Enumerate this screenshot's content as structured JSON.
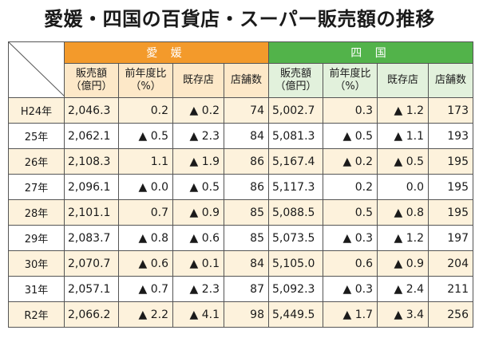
{
  "title": "愛媛・四国の百貨店・スーパー販売額の推移",
  "groups": {
    "ehime": "愛 媛",
    "shikoku": "四 国"
  },
  "headers": {
    "sales_line1": "販売額",
    "sales_line2": "（億円）",
    "yoy_line1": "前年度比",
    "yoy_line2": "（%）",
    "existing": "既存店",
    "stores": "店舗数"
  },
  "rows": [
    {
      "label": "H24年",
      "e_sales": "2,046.3",
      "e_yoy": "0.2",
      "e_exist": "▲ 0.2",
      "e_stores": "74",
      "s_sales": "5,002.7",
      "s_yoy": "0.3",
      "s_exist": "▲ 1.2",
      "s_stores": "173"
    },
    {
      "label": "25年",
      "e_sales": "2,062.1",
      "e_yoy": "▲ 0.5",
      "e_exist": "▲ 2.3",
      "e_stores": "84",
      "s_sales": "5,081.3",
      "s_yoy": "▲ 0.5",
      "s_exist": "▲ 1.1",
      "s_stores": "193"
    },
    {
      "label": "26年",
      "e_sales": "2,108.3",
      "e_yoy": "1.1",
      "e_exist": "▲ 1.9",
      "e_stores": "86",
      "s_sales": "5,167.4",
      "s_yoy": "▲ 0.2",
      "s_exist": "▲ 0.5",
      "s_stores": "195"
    },
    {
      "label": "27年",
      "e_sales": "2,096.1",
      "e_yoy": "▲ 0.0",
      "e_exist": "▲ 0.5",
      "e_stores": "86",
      "s_sales": "5,117.3",
      "s_yoy": "0.2",
      "s_exist": "0.0",
      "s_stores": "195"
    },
    {
      "label": "28年",
      "e_sales": "2,101.1",
      "e_yoy": "0.7",
      "e_exist": "▲ 0.9",
      "e_stores": "85",
      "s_sales": "5,088.5",
      "s_yoy": "0.5",
      "s_exist": "▲ 0.8",
      "s_stores": "195"
    },
    {
      "label": "29年",
      "e_sales": "2,083.7",
      "e_yoy": "▲ 0.8",
      "e_exist": "▲ 0.6",
      "e_stores": "85",
      "s_sales": "5,073.5",
      "s_yoy": "▲ 0.3",
      "s_exist": "▲ 1.2",
      "s_stores": "197"
    },
    {
      "label": "30年",
      "e_sales": "2,070.7",
      "e_yoy": "▲ 0.6",
      "e_exist": "▲ 0.1",
      "e_stores": "84",
      "s_sales": "5,105.0",
      "s_yoy": "0.6",
      "s_exist": "▲ 0.9",
      "s_stores": "204"
    },
    {
      "label": "31年",
      "e_sales": "2,057.1",
      "e_yoy": "▲ 0.7",
      "e_exist": "▲ 2.3",
      "e_stores": "87",
      "s_sales": "5,092.3",
      "s_yoy": "▲ 0.3",
      "s_exist": "▲ 2.4",
      "s_stores": "211"
    },
    {
      "label": "R2年",
      "e_sales": "2,066.2",
      "e_yoy": "▲ 2.2",
      "e_exist": "▲ 4.1",
      "e_stores": "98",
      "s_sales": "5,449.5",
      "s_yoy": "▲ 1.7",
      "s_exist": "▲ 3.4",
      "s_stores": "256"
    }
  ]
}
